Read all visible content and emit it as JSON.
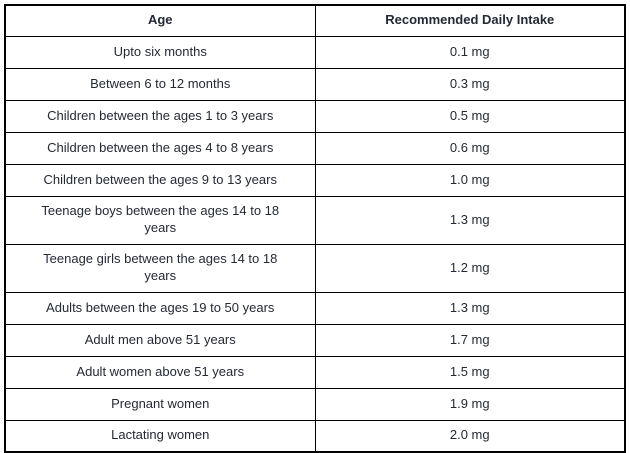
{
  "colors": {
    "background": "#ffffff",
    "border": "#000000",
    "text": "#242936"
  },
  "chart_data": {
    "type": "table",
    "title": "",
    "columns": [
      "Age",
      "Recommended Daily Intake"
    ],
    "rows": [
      [
        "Upto six months",
        "0.1 mg"
      ],
      [
        "Between 6 to 12 months",
        "0.3 mg"
      ],
      [
        "Children between the ages 1 to 3 years",
        "0.5 mg"
      ],
      [
        "Children between the ages 4 to 8 years",
        "0.6 mg"
      ],
      [
        "Children between the ages 9 to 13 years",
        "1.0 mg"
      ],
      [
        "Teenage boys between the ages 14 to 18 years",
        "1.3 mg"
      ],
      [
        "Teenage girls between the ages 14 to 18 years",
        "1.2 mg"
      ],
      [
        "Adults between the ages 19 to 50 years",
        "1.3 mg"
      ],
      [
        "Adult men above 51 years",
        "1.7 mg"
      ],
      [
        "Adult women above 51 years",
        "1.5 mg"
      ],
      [
        "Pregnant women",
        "1.9 mg"
      ],
      [
        "Lactating women",
        "2.0 mg"
      ]
    ],
    "value_unit": "mg",
    "layout": {
      "grid": true,
      "header_bold": true,
      "text_align": "center",
      "column_split": "50/50"
    }
  }
}
